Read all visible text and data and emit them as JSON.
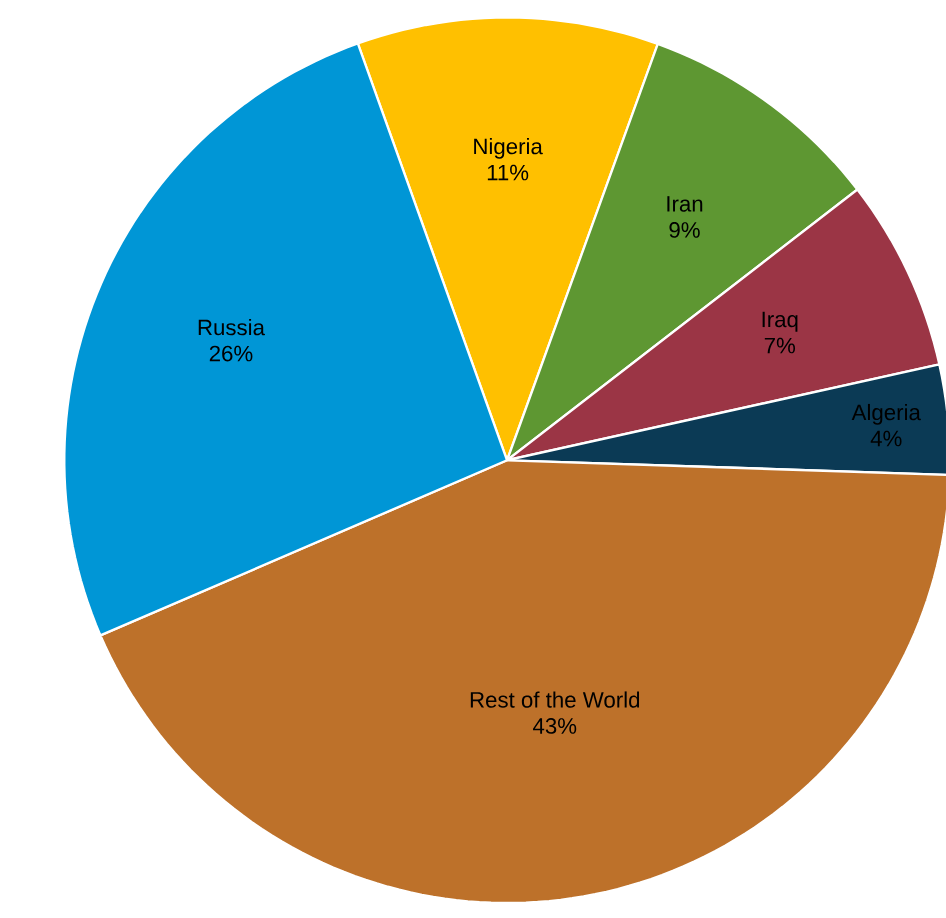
{
  "chart_data": {
    "type": "pie",
    "categories": [
      "Nigeria",
      "Iran",
      "Iraq",
      "Algeria",
      "Rest of the World",
      "Russia"
    ],
    "values": [
      11,
      9,
      7,
      4,
      43,
      26
    ],
    "value_labels": [
      "11%",
      "9%",
      "7%",
      "4%",
      "43%",
      "26%"
    ],
    "colors": [
      "#ffc000",
      "#5e9732",
      "#9b3545",
      "#0b3a55",
      "#bd712a",
      "#0096d6"
    ]
  }
}
